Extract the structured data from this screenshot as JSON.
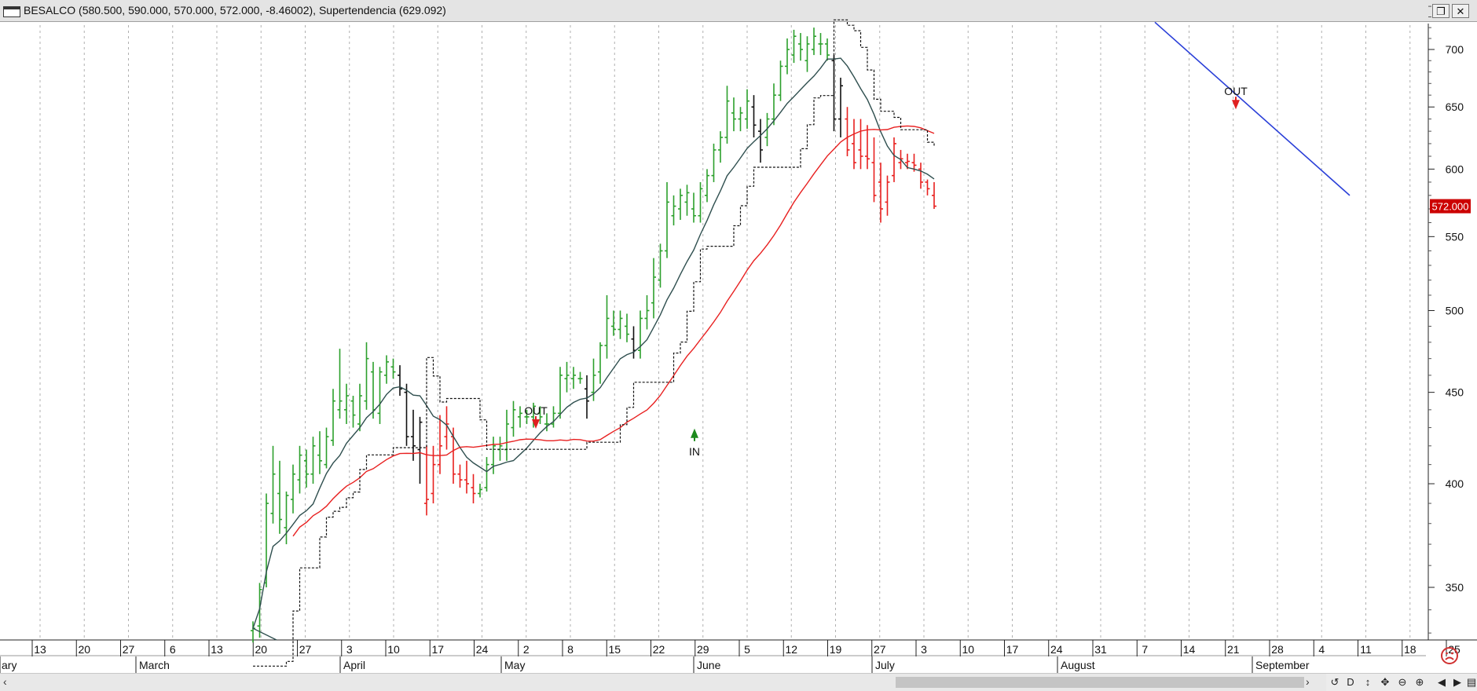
{
  "window": {
    "title": "BESALCO (580.500, 590.000, 570.000, 572.000, -8.46002), Supertendencia (629.092)",
    "restore_icon": "restore-icon",
    "close_icon": "close-icon"
  },
  "chart_data": {
    "type": "ohlc",
    "log_scale": true,
    "grid": "vertical-dotted",
    "ylim": [
      325,
      745
    ],
    "y_ticks": [
      350,
      400,
      450,
      500,
      550,
      600,
      650,
      700
    ],
    "x_ticks": [
      "13",
      "20",
      "27",
      "6",
      "13",
      "20",
      "27",
      "3",
      "10",
      "17",
      "24",
      "2",
      "8",
      "15",
      "22",
      "29",
      "5",
      "12",
      "19",
      "27",
      "3",
      "10",
      "17",
      "24",
      "31",
      "7",
      "14",
      "21",
      "28",
      "4",
      "11",
      "18",
      "25"
    ],
    "months": [
      "ary",
      "March",
      "April",
      "May",
      "June",
      "July",
      "August",
      "September"
    ],
    "last_price_label": "572.000",
    "colors": {
      "up": "#2ca02c",
      "down": "#e8201e",
      "neutral": "#111111",
      "ma_fast": "#2f4f4f",
      "ma_slow": "#e82020",
      "trend": "#2a3fd8",
      "supertrend": "#111111"
    },
    "signals": [
      {
        "label": "OUT",
        "type": "sell",
        "date_index": 12
      },
      {
        "label": "IN",
        "type": "buy",
        "date_index": 16
      },
      {
        "label": "OUT",
        "type": "sell",
        "date_index": 28
      }
    ],
    "bars": [
      [
        331,
        335,
        326,
        332,
        "g"
      ],
      [
        333,
        352,
        328,
        349,
        "g"
      ],
      [
        352,
        395,
        350,
        390,
        "g"
      ],
      [
        385,
        420,
        380,
        405,
        "g"
      ],
      [
        395,
        412,
        375,
        382,
        "g"
      ],
      [
        378,
        396,
        370,
        394,
        "g"
      ],
      [
        392,
        410,
        385,
        405,
        "g"
      ],
      [
        402,
        420,
        395,
        415,
        "g"
      ],
      [
        412,
        418,
        398,
        405,
        "g"
      ],
      [
        405,
        425,
        400,
        420,
        "g"
      ],
      [
        415,
        428,
        405,
        412,
        "g"
      ],
      [
        410,
        430,
        408,
        425,
        "g"
      ],
      [
        423,
        452,
        420,
        445,
        "g"
      ],
      [
        440,
        476,
        435,
        445,
        "g"
      ],
      [
        440,
        455,
        432,
        448,
        "g"
      ],
      [
        445,
        448,
        430,
        437,
        "g"
      ],
      [
        432,
        455,
        428,
        448,
        "g"
      ],
      [
        445,
        480,
        440,
        470,
        "g"
      ],
      [
        462,
        468,
        435,
        440,
        "g"
      ],
      [
        438,
        465,
        432,
        462,
        "g"
      ],
      [
        460,
        472,
        455,
        468,
        "g"
      ],
      [
        465,
        470,
        458,
        462,
        "g"
      ],
      [
        460,
        466,
        448,
        452,
        "k"
      ],
      [
        450,
        455,
        420,
        425,
        "k"
      ],
      [
        425,
        440,
        412,
        420,
        "k"
      ],
      [
        418,
        436,
        400,
        433,
        "k"
      ],
      [
        390,
        420,
        384,
        392,
        "r"
      ],
      [
        395,
        420,
        390,
        410,
        "r"
      ],
      [
        410,
        437,
        405,
        420,
        "r"
      ],
      [
        425,
        442,
        418,
        432,
        "r"
      ],
      [
        425,
        430,
        400,
        405,
        "r"
      ],
      [
        405,
        410,
        398,
        402,
        "r"
      ],
      [
        402,
        412,
        395,
        400,
        "r"
      ],
      [
        398,
        405,
        390,
        395,
        "r"
      ],
      [
        395,
        400,
        393,
        397,
        "g"
      ],
      [
        398,
        414,
        396,
        410,
        "g"
      ],
      [
        410,
        425,
        405,
        420,
        "g"
      ],
      [
        418,
        425,
        412,
        420,
        "g"
      ],
      [
        418,
        440,
        412,
        432,
        "g"
      ],
      [
        430,
        445,
        425,
        440,
        "g"
      ],
      [
        436,
        442,
        430,
        438,
        "g"
      ],
      [
        436,
        440,
        432,
        436,
        "g"
      ],
      [
        436,
        444,
        430,
        442,
        "g"
      ],
      [
        438,
        442,
        432,
        436,
        "g"
      ],
      [
        432,
        438,
        428,
        432,
        "g"
      ],
      [
        432,
        442,
        430,
        438,
        "g"
      ],
      [
        438,
        465,
        435,
        460,
        "g"
      ],
      [
        458,
        468,
        450,
        460,
        "g"
      ],
      [
        458,
        465,
        452,
        460,
        "g"
      ],
      [
        458,
        462,
        455,
        458,
        "g"
      ],
      [
        452,
        460,
        435,
        445,
        "k"
      ],
      [
        450,
        470,
        445,
        460,
        "g"
      ],
      [
        462,
        480,
        455,
        478,
        "g"
      ],
      [
        478,
        510,
        470,
        495,
        "g"
      ],
      [
        490,
        500,
        484,
        488,
        "g"
      ],
      [
        488,
        500,
        482,
        495,
        "g"
      ],
      [
        490,
        498,
        480,
        485,
        "g"
      ],
      [
        482,
        490,
        470,
        475,
        "k"
      ],
      [
        475,
        500,
        470,
        495,
        "g"
      ],
      [
        495,
        510,
        488,
        500,
        "g"
      ],
      [
        505,
        535,
        495,
        522,
        "g"
      ],
      [
        520,
        545,
        515,
        540,
        "g"
      ],
      [
        540,
        590,
        535,
        575,
        "g"
      ],
      [
        565,
        580,
        558,
        572,
        "g"
      ],
      [
        570,
        585,
        562,
        580,
        "g"
      ],
      [
        575,
        588,
        565,
        582,
        "g"
      ],
      [
        570,
        582,
        560,
        565,
        "g"
      ],
      [
        565,
        590,
        560,
        585,
        "g"
      ],
      [
        580,
        600,
        575,
        595,
        "g"
      ],
      [
        595,
        620,
        590,
        615,
        "g"
      ],
      [
        615,
        630,
        605,
        625,
        "g"
      ],
      [
        625,
        668,
        620,
        655,
        "g"
      ],
      [
        645,
        658,
        630,
        640,
        "g"
      ],
      [
        640,
        650,
        630,
        645,
        "g"
      ],
      [
        640,
        665,
        632,
        655,
        "g"
      ],
      [
        650,
        660,
        625,
        635,
        "k"
      ],
      [
        630,
        640,
        605,
        615,
        "k"
      ],
      [
        625,
        645,
        618,
        640,
        "g"
      ],
      [
        640,
        670,
        635,
        660,
        "g"
      ],
      [
        660,
        690,
        655,
        685,
        "g"
      ],
      [
        685,
        710,
        678,
        700,
        "g"
      ],
      [
        695,
        718,
        688,
        712,
        "g"
      ],
      [
        705,
        715,
        690,
        700,
        "g"
      ],
      [
        690,
        712,
        680,
        705,
        "g"
      ],
      [
        700,
        720,
        695,
        712,
        "g"
      ],
      [
        705,
        715,
        695,
        705,
        "g"
      ],
      [
        705,
        710,
        690,
        695,
        "g"
      ],
      [
        690,
        695,
        630,
        640,
        "k"
      ],
      [
        640,
        675,
        625,
        668,
        "k"
      ],
      [
        640,
        650,
        610,
        615,
        "r"
      ],
      [
        620,
        640,
        600,
        605,
        "r"
      ],
      [
        615,
        640,
        600,
        610,
        "r"
      ],
      [
        610,
        635,
        600,
        608,
        "r"
      ],
      [
        605,
        625,
        575,
        580,
        "r"
      ],
      [
        590,
        605,
        560,
        570,
        "r"
      ],
      [
        575,
        595,
        565,
        590,
        "r"
      ],
      [
        595,
        625,
        590,
        620,
        "r"
      ],
      [
        605,
        615,
        600,
        608,
        "r"
      ],
      [
        605,
        612,
        600,
        606,
        "r"
      ],
      [
        605,
        612,
        598,
        603,
        "r"
      ],
      [
        600,
        605,
        585,
        590,
        "r"
      ],
      [
        590,
        592,
        580,
        585,
        "r"
      ],
      [
        580,
        590,
        570,
        572,
        "r"
      ]
    ]
  }
}
